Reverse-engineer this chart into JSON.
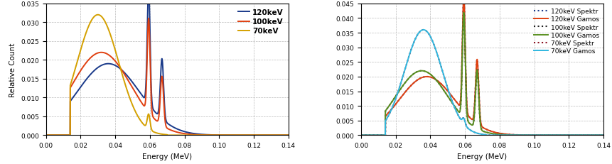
{
  "xlim": [
    0.0,
    0.14
  ],
  "ylim1": [
    0.0,
    0.035
  ],
  "ylim2": [
    0.0,
    0.045
  ],
  "yticks1": [
    0.0,
    0.005,
    0.01,
    0.015,
    0.02,
    0.025,
    0.03,
    0.035
  ],
  "yticks2": [
    0.0,
    0.005,
    0.01,
    0.015,
    0.02,
    0.025,
    0.03,
    0.035,
    0.04,
    0.045
  ],
  "xticks": [
    0.0,
    0.02,
    0.04,
    0.06,
    0.08,
    0.1,
    0.12,
    0.14
  ],
  "xlabel": "Energy (MeV)",
  "ylabel": "Relative Count",
  "color_120": "#1a3a8a",
  "color_100": "#e04010",
  "color_70": "#d4a000",
  "color_120_gamos": "#e04010",
  "color_100_gamos": "#5a9020",
  "color_70_gamos": "#30b8e0",
  "color_120_spektr": "#1a3a8a",
  "color_100_spektr": "#202020",
  "color_70_spektr": "#8b1020",
  "grid_color": "#bbbbbb",
  "background": "#ffffff",
  "legend1": [
    "120keV",
    "100keV",
    "70keV"
  ],
  "legend2_labels": [
    "120keV Spektr",
    "120keV Gamos",
    "100keV Spektr",
    "100keV Gamos",
    "70keV Spektr",
    "70keV Gamos"
  ]
}
